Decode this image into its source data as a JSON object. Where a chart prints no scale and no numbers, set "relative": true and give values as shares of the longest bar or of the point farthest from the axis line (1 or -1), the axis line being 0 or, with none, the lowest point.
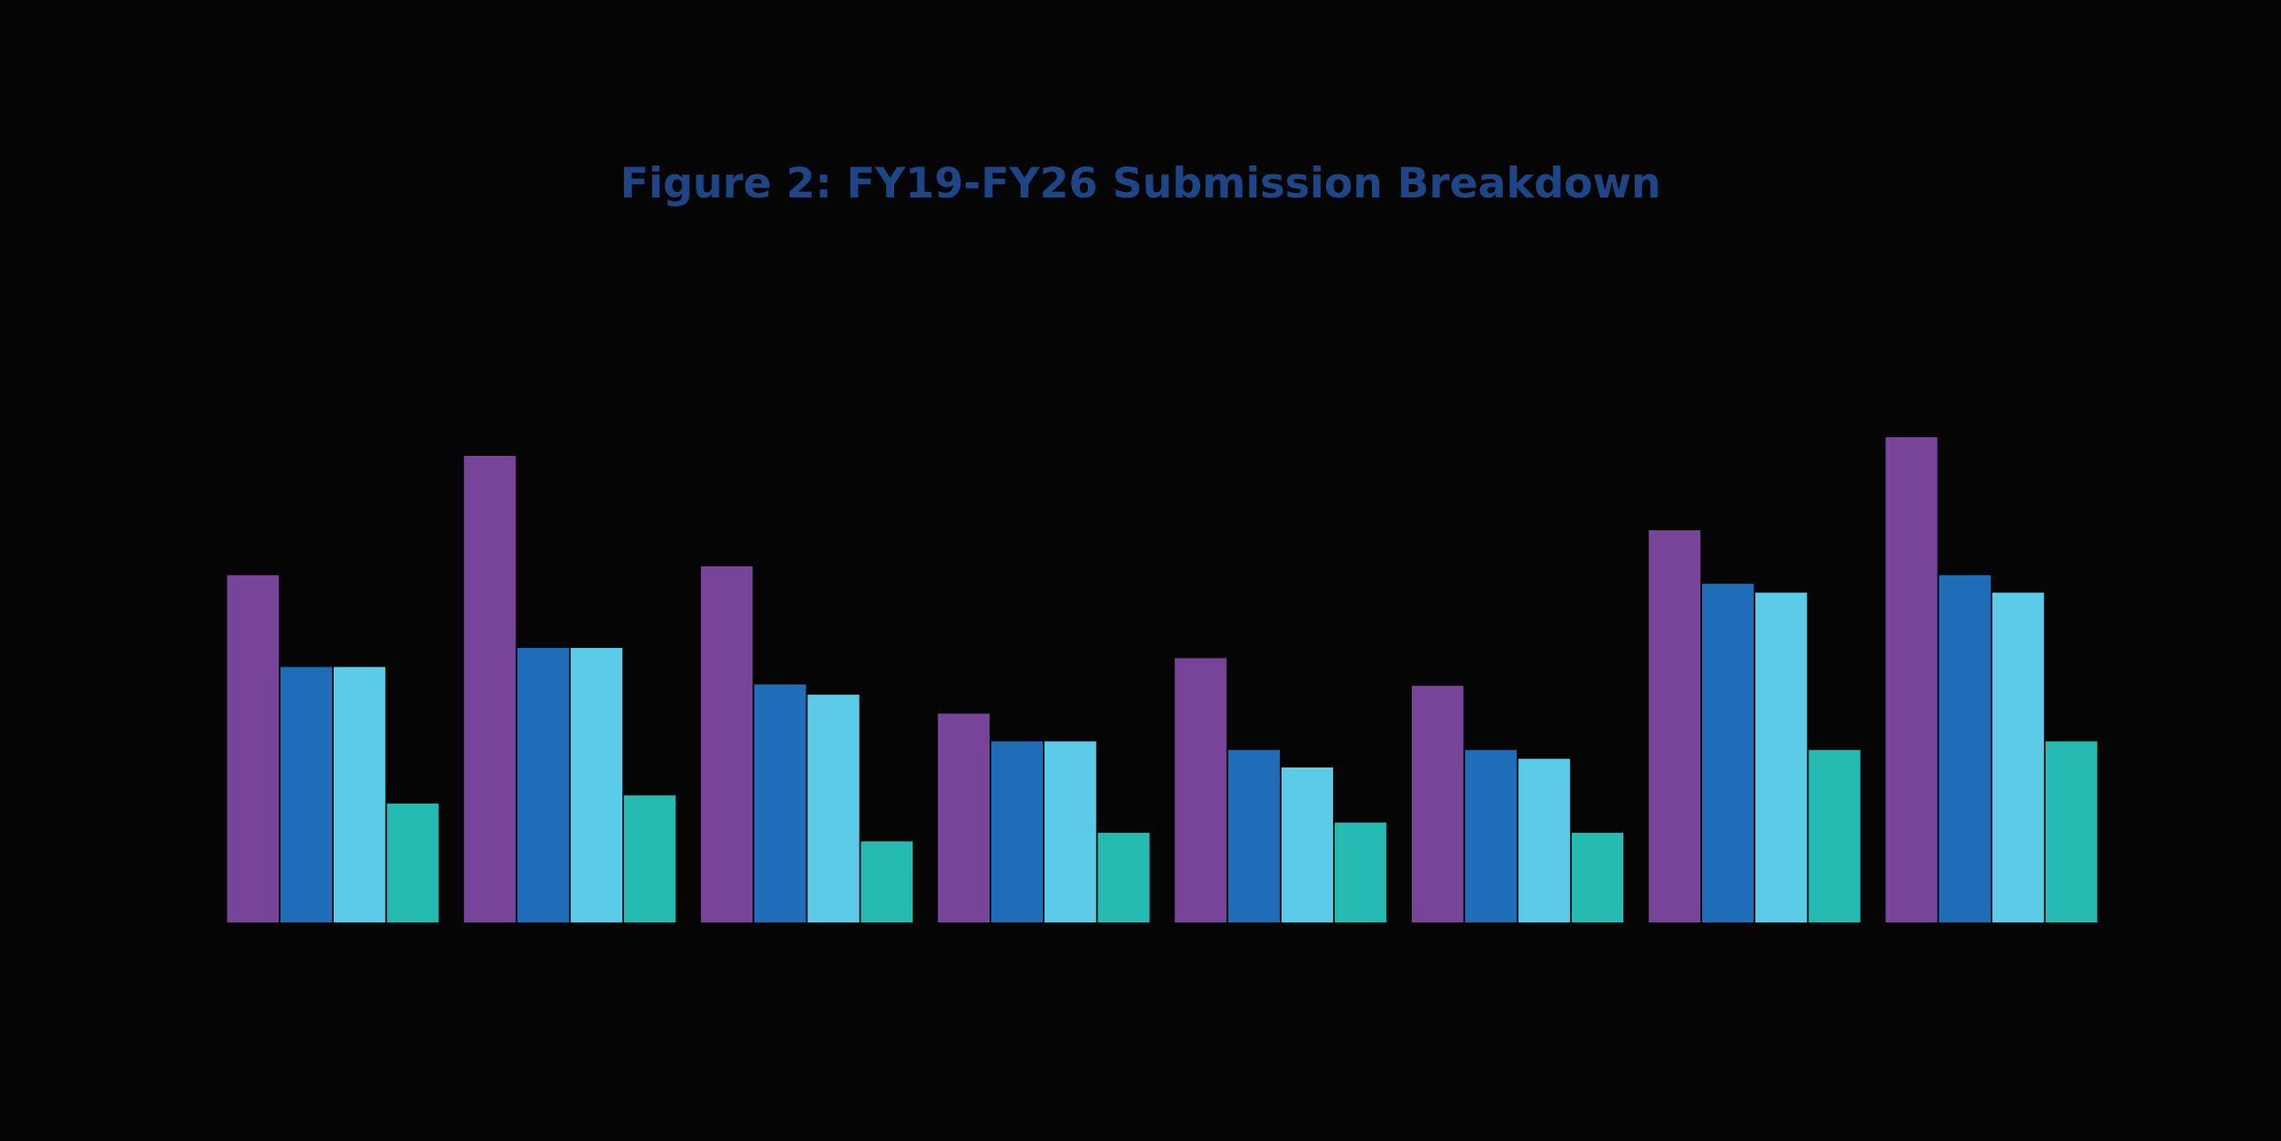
{
  "chart_data": {
    "type": "bar",
    "title": "Figure 2: FY19-FY26 Submission Breakdown",
    "relative": true,
    "legend": false,
    "grid": false,
    "categories": [
      null,
      null,
      null,
      null,
      null,
      null,
      null,
      null
    ],
    "series": [
      {
        "color": "#77449a",
        "values": [
          0.716,
          0.961,
          0.734,
          0.431,
          0.545,
          0.488,
          0.808,
          1
        ]
      },
      {
        "color": "#1f6db8",
        "values": [
          0.527,
          0.566,
          0.491,
          0.374,
          0.356,
          0.356,
          0.698,
          0.716
        ]
      },
      {
        "color": "#5bcbe8",
        "values": [
          0.527,
          0.566,
          0.47,
          0.374,
          0.32,
          0.338,
          0.68,
          0.68
        ]
      },
      {
        "color": "#26bbb2",
        "values": [
          0.246,
          0.263,
          0.168,
          0.186,
          0.207,
          0.186,
          0.356,
          0.374
        ]
      }
    ]
  }
}
